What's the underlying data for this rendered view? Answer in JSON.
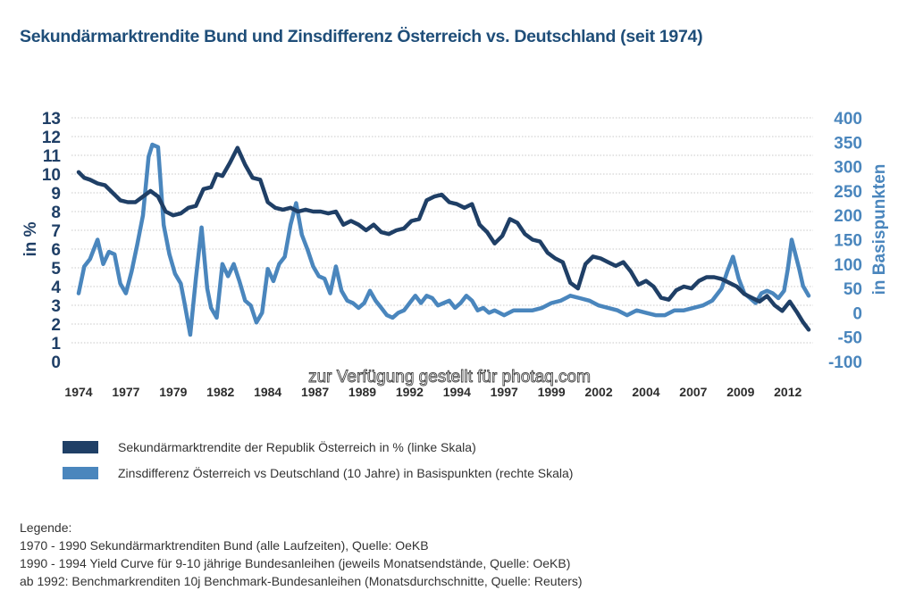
{
  "title": "Sekundärmarktrendite Bund und Zinsdifferenz Österreich vs. Deutschland (seit 1974)",
  "colors": {
    "series_left": "#1f3f66",
    "series_right": "#4a86bd",
    "title": "#1f4e79",
    "grid": "#c8c8c8"
  },
  "watermark": "zur Verfügung gestellt für photaq.com",
  "legend": [
    {
      "label": "Sekundärmarktrendite der Republik Österreich in % (linke Skala)",
      "color": "#1f3f66"
    },
    {
      "label": "Zinsdifferenz Österreich vs Deutschland (10 Jahre) in Basispunkten (rechte Skala)",
      "color": "#4a86bd"
    }
  ],
  "notes": {
    "heading": "Legende:",
    "lines": [
      "1970 - 1990 Sekundärmarktrenditen Bund (alle Laufzeiten), Quelle: OeKB",
      "1990 - 1994 Yield Curve für 9-10 jährige Bundesanleihen (jeweils Monatsendstände, Quelle: OeKB)",
      "ab 1992: Benchmarkrenditen 10j Benchmark-Bundesanleihen (Monatsdurchschnitte, Quelle: Reuters)"
    ]
  },
  "chart_data": {
    "type": "line",
    "title": "Sekundärmarktrendite Bund und Zinsdifferenz Österreich vs. Deutschland (seit 1974)",
    "xlabel": "",
    "ylabel": "in %",
    "ylabel_right": "in Basispunkten",
    "xlim": [
      1974,
      2012.6
    ],
    "ylim": [
      0,
      13
    ],
    "ylim_right": [
      -100,
      400
    ],
    "grid": true,
    "legend_position": "bottom",
    "x_tick_labels": [
      "1974",
      "1977",
      "1979",
      "1982",
      "1984",
      "1987",
      "1989",
      "1992",
      "1994",
      "1997",
      "1999",
      "2002",
      "2004",
      "2007",
      "2009",
      "2012"
    ],
    "x_tick_values": [
      1974,
      1976.5,
      1979,
      1981.5,
      1984,
      1986.5,
      1989,
      1991.5,
      1994,
      1996.5,
      1999,
      2001.5,
      2004,
      2006.5,
      2009,
      2011.5
    ],
    "y_tick_labels_left": [
      "0",
      "1",
      "2",
      "3",
      "4",
      "5",
      "6",
      "7",
      "8",
      "9",
      "10",
      "11",
      "12",
      "13"
    ],
    "y_tick_labels_right": [
      "-100",
      "-50",
      "0",
      "50",
      "100",
      "150",
      "200",
      "250",
      "300",
      "350",
      "400"
    ],
    "series": [
      {
        "name": "Sekundärmarktrendite der Republik Österreich in % (linke Skala)",
        "axis": "left",
        "x": [
          1974.0,
          1974.3,
          1974.6,
          1975.0,
          1975.4,
          1975.8,
          1976.2,
          1976.6,
          1977.0,
          1977.4,
          1977.8,
          1978.2,
          1978.6,
          1979.0,
          1979.4,
          1979.8,
          1980.2,
          1980.6,
          1981.0,
          1981.3,
          1981.6,
          1982.0,
          1982.4,
          1982.8,
          1983.2,
          1983.6,
          1984.0,
          1984.4,
          1984.8,
          1985.2,
          1985.6,
          1986.0,
          1986.4,
          1986.8,
          1987.2,
          1987.6,
          1988.0,
          1988.4,
          1988.8,
          1989.2,
          1989.6,
          1990.0,
          1990.4,
          1990.8,
          1991.2,
          1991.6,
          1992.0,
          1992.4,
          1992.8,
          1993.2,
          1993.6,
          1994.0,
          1994.4,
          1994.8,
          1995.2,
          1995.6,
          1996.0,
          1996.4,
          1996.8,
          1997.2,
          1997.6,
          1998.0,
          1998.4,
          1998.8,
          1999.2,
          1999.6,
          2000.0,
          2000.4,
          2000.8,
          2001.2,
          2001.6,
          2002.0,
          2002.4,
          2002.8,
          2003.2,
          2003.6,
          2004.0,
          2004.4,
          2004.8,
          2005.2,
          2005.6,
          2006.0,
          2006.4,
          2006.8,
          2007.2,
          2007.6,
          2008.0,
          2008.4,
          2008.8,
          2009.2,
          2009.6,
          2010.0,
          2010.4,
          2010.8,
          2011.2,
          2011.6,
          2012.0,
          2012.3,
          2012.6
        ],
        "values": [
          10.1,
          9.8,
          9.7,
          9.5,
          9.4,
          9.0,
          8.6,
          8.5,
          8.5,
          8.8,
          9.1,
          8.8,
          8.0,
          7.8,
          7.9,
          8.2,
          8.3,
          9.2,
          9.3,
          10.0,
          9.9,
          10.6,
          11.4,
          10.5,
          9.8,
          9.7,
          8.5,
          8.2,
          8.1,
          8.2,
          8.0,
          8.1,
          8.0,
          8.0,
          7.9,
          8.0,
          7.3,
          7.5,
          7.3,
          7.0,
          7.3,
          6.9,
          6.8,
          7.0,
          7.1,
          7.5,
          7.6,
          8.6,
          8.8,
          8.9,
          8.5,
          8.4,
          8.2,
          8.4,
          7.3,
          6.9,
          6.3,
          6.7,
          7.6,
          7.4,
          6.8,
          6.5,
          6.4,
          5.8,
          5.5,
          5.3,
          4.2,
          3.9,
          5.2,
          5.6,
          5.5,
          5.3,
          5.1,
          5.3,
          4.8,
          4.1,
          4.3,
          4.0,
          3.4,
          3.3,
          3.8,
          4.0,
          3.9,
          4.3,
          4.5,
          4.5,
          4.4,
          4.2,
          4.0,
          3.6,
          3.4,
          3.2,
          3.5,
          3.0,
          2.7,
          3.2,
          2.6,
          2.1,
          1.7
        ]
      },
      {
        "name": "Zinsdifferenz Österreich vs Deutschland (10 Jahre) in Basispunkten (rechte Skala)",
        "axis": "right",
        "x": [
          1974.0,
          1974.3,
          1974.6,
          1975.0,
          1975.3,
          1975.6,
          1975.9,
          1976.2,
          1976.5,
          1976.8,
          1977.1,
          1977.4,
          1977.7,
          1977.9,
          1978.2,
          1978.5,
          1978.8,
          1979.1,
          1979.4,
          1979.6,
          1979.9,
          1980.2,
          1980.5,
          1980.8,
          1981.0,
          1981.3,
          1981.6,
          1981.9,
          1982.2,
          1982.5,
          1982.8,
          1983.1,
          1983.4,
          1983.7,
          1984.0,
          1984.3,
          1984.6,
          1984.9,
          1985.2,
          1985.5,
          1985.8,
          1986.1,
          1986.4,
          1986.7,
          1987.0,
          1987.3,
          1987.6,
          1987.9,
          1988.2,
          1988.5,
          1988.8,
          1989.1,
          1989.4,
          1989.7,
          1990.0,
          1990.3,
          1990.6,
          1990.9,
          1991.2,
          1991.5,
          1991.8,
          1992.1,
          1992.4,
          1992.7,
          1993.0,
          1993.3,
          1993.6,
          1993.9,
          1994.2,
          1994.5,
          1994.8,
          1995.1,
          1995.4,
          1995.7,
          1996.0,
          1996.5,
          1997.0,
          1997.5,
          1998.0,
          1998.5,
          1999.0,
          1999.5,
          2000.0,
          2000.5,
          2001.0,
          2001.5,
          2002.0,
          2002.5,
          2003.0,
          2003.5,
          2004.0,
          2004.5,
          2005.0,
          2005.5,
          2006.0,
          2006.5,
          2007.0,
          2007.5,
          2008.0,
          2008.3,
          2008.6,
          2008.9,
          2009.2,
          2009.5,
          2009.8,
          2010.1,
          2010.4,
          2010.7,
          2011.0,
          2011.3,
          2011.5,
          2011.7,
          2011.9,
          2012.1,
          2012.3,
          2012.6
        ],
        "values": [
          40,
          95,
          110,
          150,
          100,
          125,
          120,
          60,
          40,
          85,
          140,
          200,
          320,
          345,
          340,
          180,
          120,
          80,
          60,
          20,
          -45,
          70,
          175,
          50,
          10,
          -10,
          100,
          75,
          100,
          65,
          25,
          15,
          -20,
          0,
          90,
          65,
          100,
          115,
          180,
          225,
          160,
          130,
          95,
          75,
          70,
          40,
          95,
          45,
          25,
          20,
          10,
          20,
          45,
          25,
          10,
          -5,
          -10,
          0,
          5,
          20,
          35,
          20,
          35,
          30,
          15,
          20,
          25,
          10,
          20,
          35,
          25,
          5,
          10,
          0,
          5,
          -5,
          5,
          5,
          5,
          10,
          20,
          25,
          35,
          30,
          25,
          15,
          10,
          5,
          -5,
          5,
          0,
          -5,
          -5,
          5,
          5,
          10,
          15,
          25,
          50,
          85,
          115,
          70,
          40,
          30,
          20,
          40,
          45,
          40,
          30,
          45,
          90,
          150,
          120,
          90,
          55,
          35
        ]
      }
    ]
  }
}
